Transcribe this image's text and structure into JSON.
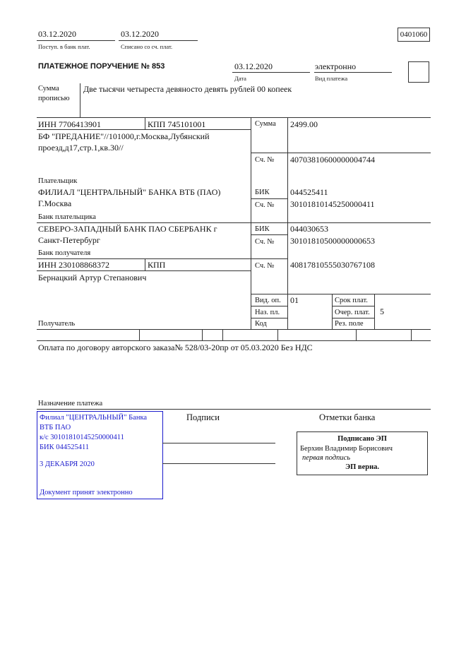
{
  "header": {
    "received_date": "03.12.2020",
    "received_label": "Поступ. в банк плат.",
    "debited_date": "03.12.2020",
    "debited_label": "Списано со сч. плат.",
    "form_code": "0401060",
    "title": "ПЛАТЕЖНОЕ ПОРУЧЕНИЕ № 853",
    "date": "03.12.2020",
    "date_label": "Дата",
    "payment_type": "электронно",
    "payment_type_label": "Вид платежа"
  },
  "amount_words": {
    "label_1": "Сумма",
    "label_2": "прописью",
    "value": "Две тысячи четыреста девяносто девять рублей 00 копеек"
  },
  "payer": {
    "inn": "ИНН 7706413901",
    "kpp": "КПП 745101001",
    "name_1": "БФ \"ПРЕДАНИЕ\"//101000,г.Москва,Лубянский",
    "name_2": "проезд,д17,стр.1,кв.30//",
    "label": "Плательщик"
  },
  "sum": {
    "label": "Сумма",
    "value": "2499.00"
  },
  "payer_account": {
    "label": "Сч. №",
    "value": "40703810600000004744"
  },
  "payer_bank": {
    "name_1": "ФИЛИАЛ \"ЦЕНТРАЛЬНЫЙ\" БАНКА ВТБ (ПАО)",
    "name_2": "Г.Москва",
    "label": "Банк плательщика",
    "bik_label": "БИК",
    "bik": "044525411",
    "acc_label": "Сч. №",
    "acc": "30101810145250000411"
  },
  "payee_bank": {
    "name_1": "СЕВЕРО-ЗАПАДНЫЙ БАНК ПАО СБЕРБАНК г",
    "name_2": "Санкт-Петербург",
    "label": "Банк получателя",
    "bik_label": "БИК",
    "bik": "044030653",
    "acc_label": "Сч. №",
    "acc": "30101810500000000653"
  },
  "payee": {
    "inn": "ИНН 230108868372",
    "kpp": "КПП",
    "name": "Бернацкий Артур Степанович",
    "label": "Получатель",
    "acc_label": "Сч. №",
    "acc": "40817810555030767108"
  },
  "codes": {
    "op_type_label": "Вид. оп.",
    "op_type": "01",
    "purpose_label": "Наз. пл.",
    "code_label": "Код",
    "term_label": "Срок плат.",
    "priority_label": "Очер. плат.",
    "priority": "5",
    "reserve_label": "Рез. поле"
  },
  "purpose": {
    "text": "Оплата по договору авторского заказа№ 528/03-20пр от 05.03.2020 Без НДС",
    "label": "Назначение платежа"
  },
  "stamp": {
    "line_1": "Филиал \"ЦЕНТРАЛЬНЫЙ\" Банка",
    "line_2": "ВТБ ПАО",
    "line_3": "к/с 30101810145250000411",
    "line_4": "БИК 044525411",
    "line_5": "3 ДЕКАБРЯ 2020",
    "line_6": "Документ принят электронно",
    "color": "#1a1acc"
  },
  "signatures": {
    "label": "Подписи"
  },
  "bank_marks": {
    "label": "Отметки банка",
    "signed": "Подписано ЭП",
    "signer": "Берхин Владимир Борисович",
    "role": "первая подпись",
    "verified": "ЭП верна."
  }
}
